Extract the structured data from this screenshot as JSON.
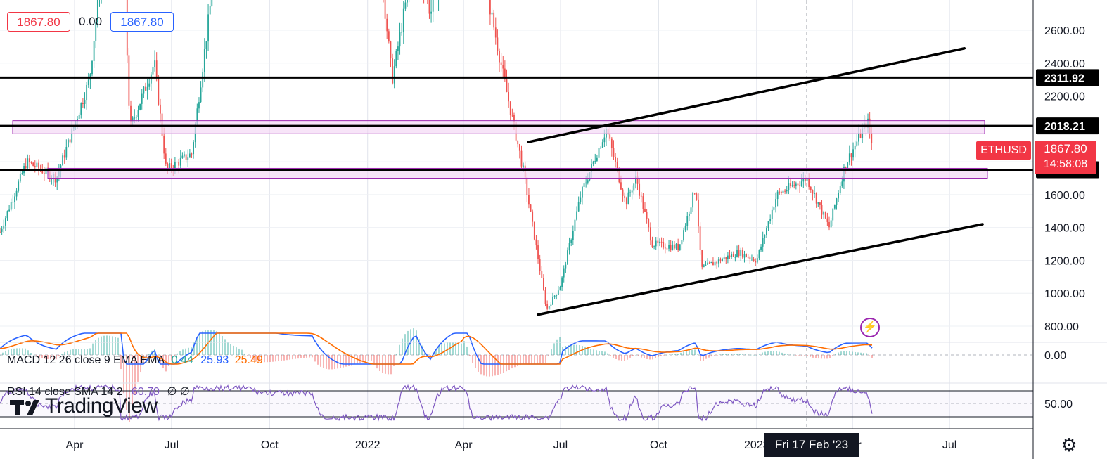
{
  "ohlc": {
    "open_value": "1867.80",
    "change_value": "0.00",
    "close_value": "1867.80"
  },
  "symbol": "ETHUSD",
  "last_price": "1867.80",
  "countdown": "14:58:08",
  "crosshair_date": "Fri 17 Feb '23",
  "brand": "TradingView",
  "colors": {
    "up": "#26a69a",
    "down": "#ef5350",
    "zone_fill": "#f3d6f5",
    "zone_stroke": "#9c27b0",
    "macd_line": "#2962ff",
    "signal_line": "#ff6d00",
    "rsi_line": "#7e57c2",
    "price_tag": "#f23645"
  },
  "macd_legend": {
    "label": "MACD 12 26 close 9 EMA EMA",
    "histogram": "0.44",
    "macd": "25.93",
    "signal": "25.49"
  },
  "rsi_legend": {
    "label": "RSI 14 close SMA 14 2",
    "value": "60.79",
    "extra": "∅ ∅"
  },
  "chart_data": {
    "type": "candlestick",
    "symbol": "ETHUSD",
    "x_ticks": [
      "Apr",
      "Jul",
      "Oct",
      "2022",
      "Apr",
      "Jul",
      "Oct",
      "2023",
      "Apr",
      "Jul"
    ],
    "y_ticks": [
      "2600.00",
      "2400.00",
      "2200.00",
      "1800.00",
      "1600.00",
      "1400.00",
      "1200.00",
      "1000.00",
      "800.00"
    ],
    "price_labels": [
      "2311.92",
      "2018.21",
      "1751.21"
    ],
    "horizontal_levels": [
      2311.92,
      2018.21,
      1751.21
    ],
    "resistance_zones": [
      [
        1970,
        2050
      ],
      [
        1700,
        1760
      ]
    ],
    "channel_upper": [
      [
        "2022-06-01",
        1920
      ],
      [
        "2023-07-15",
        2490
      ]
    ],
    "channel_lower": [
      [
        "2022-06-10",
        870
      ],
      [
        "2023-08-01",
        1420
      ]
    ],
    "approx_close_path": [
      [
        "2021-01-05",
        1100
      ],
      [
        "2021-02-15",
        1800
      ],
      [
        "2021-03-15",
        1700
      ],
      [
        "2021-04-15",
        2300
      ],
      [
        "2021-05-12",
        3900
      ],
      [
        "2021-05-23",
        2000
      ],
      [
        "2021-06-15",
        2400
      ],
      [
        "2021-06-26",
        1750
      ],
      [
        "2021-07-20",
        1850
      ],
      [
        "2021-08-15",
        3200
      ],
      [
        "2021-09-05",
        3900
      ],
      [
        "2021-11-10",
        4700
      ],
      [
        "2022-01-05",
        3500
      ],
      [
        "2022-01-24",
        2300
      ],
      [
        "2022-02-15",
        3100
      ],
      [
        "2022-03-01",
        2700
      ],
      [
        "2022-04-03",
        3500
      ],
      [
        "2022-05-09",
        2300
      ],
      [
        "2022-05-27",
        1750
      ],
      [
        "2022-06-18",
        900
      ],
      [
        "2022-07-01",
        1050
      ],
      [
        "2022-07-20",
        1600
      ],
      [
        "2022-08-13",
        2000
      ],
      [
        "2022-08-31",
        1550
      ],
      [
        "2022-09-10",
        1700
      ],
      [
        "2022-09-25",
        1300
      ],
      [
        "2022-10-20",
        1280
      ],
      [
        "2022-11-05",
        1650
      ],
      [
        "2022-11-10",
        1150
      ],
      [
        "2022-12-15",
        1250
      ],
      [
        "2023-01-01",
        1200
      ],
      [
        "2023-01-20",
        1600
      ],
      [
        "2023-02-17",
        1700
      ],
      [
        "2023-03-10",
        1400
      ],
      [
        "2023-03-25",
        1780
      ],
      [
        "2023-04-15",
        2050
      ],
      [
        "2023-04-20",
        1867.8
      ]
    ],
    "indicators": {
      "macd": {
        "histogram": 0.44,
        "macd": 25.93,
        "signal": 25.49,
        "axis_label": "0.00"
      },
      "rsi": {
        "value": 60.79,
        "axis_label": "50.00"
      }
    }
  }
}
